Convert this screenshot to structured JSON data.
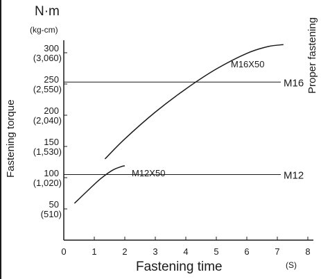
{
  "chart_data": {
    "type": "line",
    "title": "",
    "xlabel": "Fastening time",
    "x_unit": "(S)",
    "ylabel": "Fastening torque",
    "y_unit_main": "N·m",
    "y_unit_alt": "(kg-cm)",
    "right_label": "Proper fastening",
    "xlim": [
      0,
      8
    ],
    "ylim": [
      0,
      360
    ],
    "x_ticks": [
      "0",
      "1",
      "2",
      "3",
      "4",
      "5",
      "6",
      "7",
      "8"
    ],
    "y_ticks": [
      {
        "value": 50,
        "label": "50",
        "sub": "(510)"
      },
      {
        "value": 100,
        "label": "100",
        "sub": "(1,020)"
      },
      {
        "value": 150,
        "label": "150",
        "sub": "(1,530)"
      },
      {
        "value": 200,
        "label": "200",
        "sub": "(2,040)"
      },
      {
        "value": 250,
        "label": "250",
        "sub": "(2,550)"
      },
      {
        "value": 300,
        "label": "300",
        "sub": "(3,060)"
      }
    ],
    "series": [
      {
        "name": "M16X50",
        "x": [
          1.35,
          2.0,
          3.0,
          4.0,
          5.0,
          6.0,
          6.7,
          7.2
        ],
        "y": [
          130,
          162,
          205,
          242,
          274,
          299,
          310,
          313
        ]
      },
      {
        "name": "M12X50",
        "x": [
          0.35,
          0.8,
          1.2,
          1.6,
          1.9,
          2.0
        ],
        "y": [
          59,
          80,
          98,
          112,
          118,
          119
        ]
      }
    ],
    "reference_lines": [
      {
        "name": "M16",
        "y": 253
      },
      {
        "name": "M12",
        "y": 105
      }
    ]
  }
}
